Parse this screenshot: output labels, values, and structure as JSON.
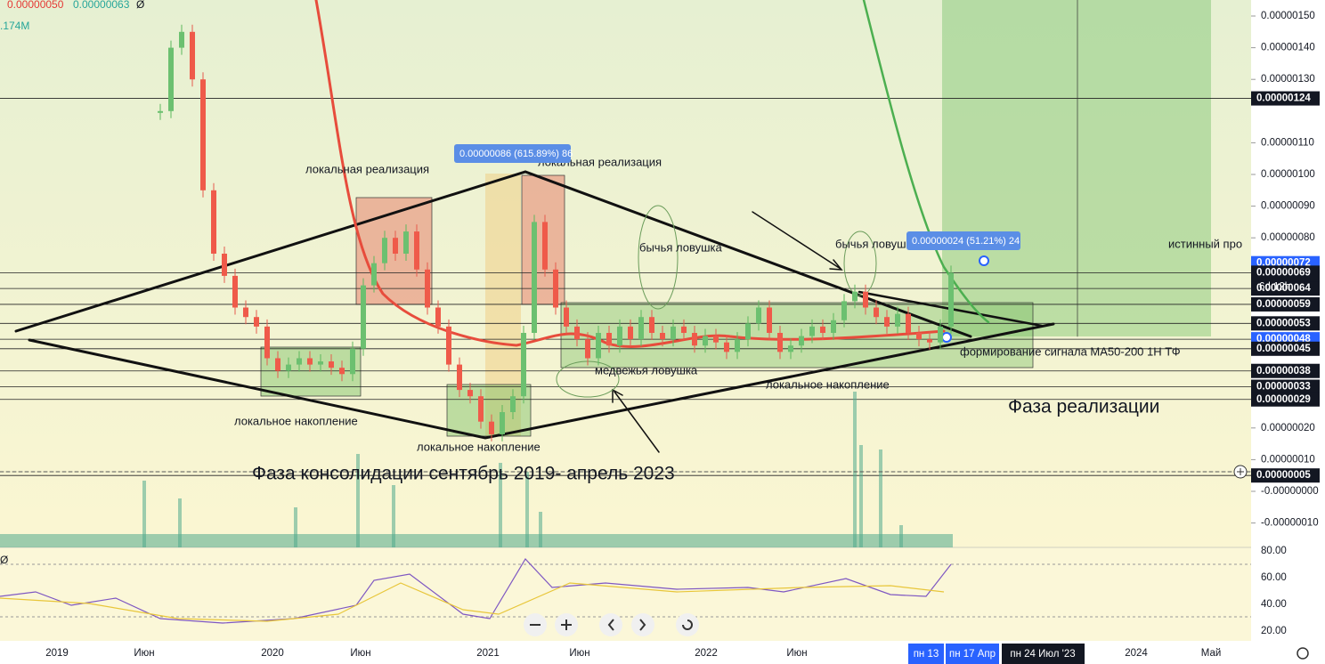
{
  "header": {
    "low": "0.00000050",
    "high": "0.00000063",
    "mark": "Ø",
    "volume": ".174M",
    "rsi_mark": "Ø"
  },
  "price_axis": {
    "ticks": [
      {
        "value": 1.5e-06,
        "label": "0.00000150"
      },
      {
        "value": 1.4e-06,
        "label": "0.00000140"
      },
      {
        "value": 1.3e-06,
        "label": "0.00000130"
      },
      {
        "value": 1.1e-06,
        "label": "0.00000110"
      },
      {
        "value": 1e-06,
        "label": "0.00000100"
      },
      {
        "value": 9e-07,
        "label": "0.00000090"
      },
      {
        "value": 8e-07,
        "label": "0.00000080"
      },
      {
        "value": 2e-07,
        "label": "0.00000020"
      },
      {
        "value": 1e-07,
        "label": "0.00000010"
      },
      {
        "value": 0,
        "label": "-0.00000000"
      },
      {
        "value": -1e-07,
        "label": "-0.00000010"
      }
    ],
    "markers": [
      {
        "value": 1.24e-06,
        "label": "0.00000124"
      },
      {
        "value": 7.2e-07,
        "label": "0.00000072"
      },
      {
        "value": 6.9e-07,
        "label": "0.00000069"
      },
      {
        "value": 6.4e-07,
        "label": "0.00000064"
      },
      {
        "value": 5.9e-07,
        "label": "0.00000059"
      },
      {
        "value": 5.3e-07,
        "label": "0.00000053"
      },
      {
        "value": 4.8e-07,
        "label": "0.00000048"
      },
      {
        "value": 4.5e-07,
        "label": "0.00000045"
      },
      {
        "value": 3.8e-07,
        "label": "0.00000038"
      },
      {
        "value": 3.3e-07,
        "label": "0.00000033"
      },
      {
        "value": 2.9e-07,
        "label": "0.00000029"
      },
      {
        "value": 5e-08,
        "label": "0.00000005"
      }
    ],
    "countdown": "6d 12h"
  },
  "rsi_axis": {
    "ticks": [
      "80.00",
      "60.00",
      "40.00",
      "20.00"
    ]
  },
  "time_axis": {
    "labels": [
      "2019",
      "Июн",
      "2020",
      "Июн",
      "2021",
      "Июн",
      "2022",
      "Июн",
      "2024",
      "Май"
    ],
    "cursor_labels": [
      "пн 13",
      "пн 17 Апр",
      "пн 24 Июл '23"
    ]
  },
  "annotations": [
    "локальная реализация",
    "локальная реализация",
    "бычья ловушка",
    "бычья ловушк",
    "истинный про",
    "формирование сигнала MA50-200 1H ТФ",
    "медвежья ловушка",
    "локальное накопление",
    "локальное накопление",
    "локальное накопление",
    "Фаза реализации",
    "Фаза консолидации сентябрь 2019- апрель 2023"
  ],
  "measures": [
    "0.00000086 (615.89%) 86",
    "0.00000024 (51.21%) 24"
  ],
  "price": {
    "closes": [
      1.2e-06,
      1.4e-06,
      1.45e-06,
      1.3e-06,
      9.5e-07,
      7.5e-07,
      6.8e-07,
      5.8e-07,
      5.5e-07,
      5.2e-07,
      4.2e-07,
      3.8e-07,
      4e-07,
      4.2e-07,
      4e-07,
      4.1e-07,
      3.9e-07,
      3.7e-07,
      4.5e-07,
      6.5e-07,
      7.2e-07,
      8e-07,
      7.5e-07,
      8.2e-07,
      7e-07,
      5.8e-07,
      5.2e-07,
      4e-07,
      3.2e-07,
      3e-07,
      2.2e-07,
      1.8e-07,
      2.5e-07,
      3e-07,
      5e-07,
      8.5e-07,
      7e-07,
      5.8e-07,
      5.2e-07,
      4.8e-07,
      4.2e-07,
      5e-07,
      4.6e-07,
      5.2e-07,
      4.8e-07,
      5.5e-07,
      5e-07,
      4.8e-07,
      5.2e-07,
      5e-07,
      4.6e-07,
      4.9e-07,
      4.7e-07,
      4.4e-07,
      4.8e-07,
      5.3e-07,
      5.8e-07,
      5e-07,
      4.4e-07,
      4.6e-07,
      4.9e-07,
      5.2e-07,
      5e-07,
      5.4e-07,
      6e-07,
      6.3e-07,
      5.8e-07,
      5.5e-07,
      5.2e-07,
      5.6e-07,
      5e-07,
      4.8e-07,
      4.7e-07,
      5.2e-07,
      6.9e-07
    ]
  }
}
